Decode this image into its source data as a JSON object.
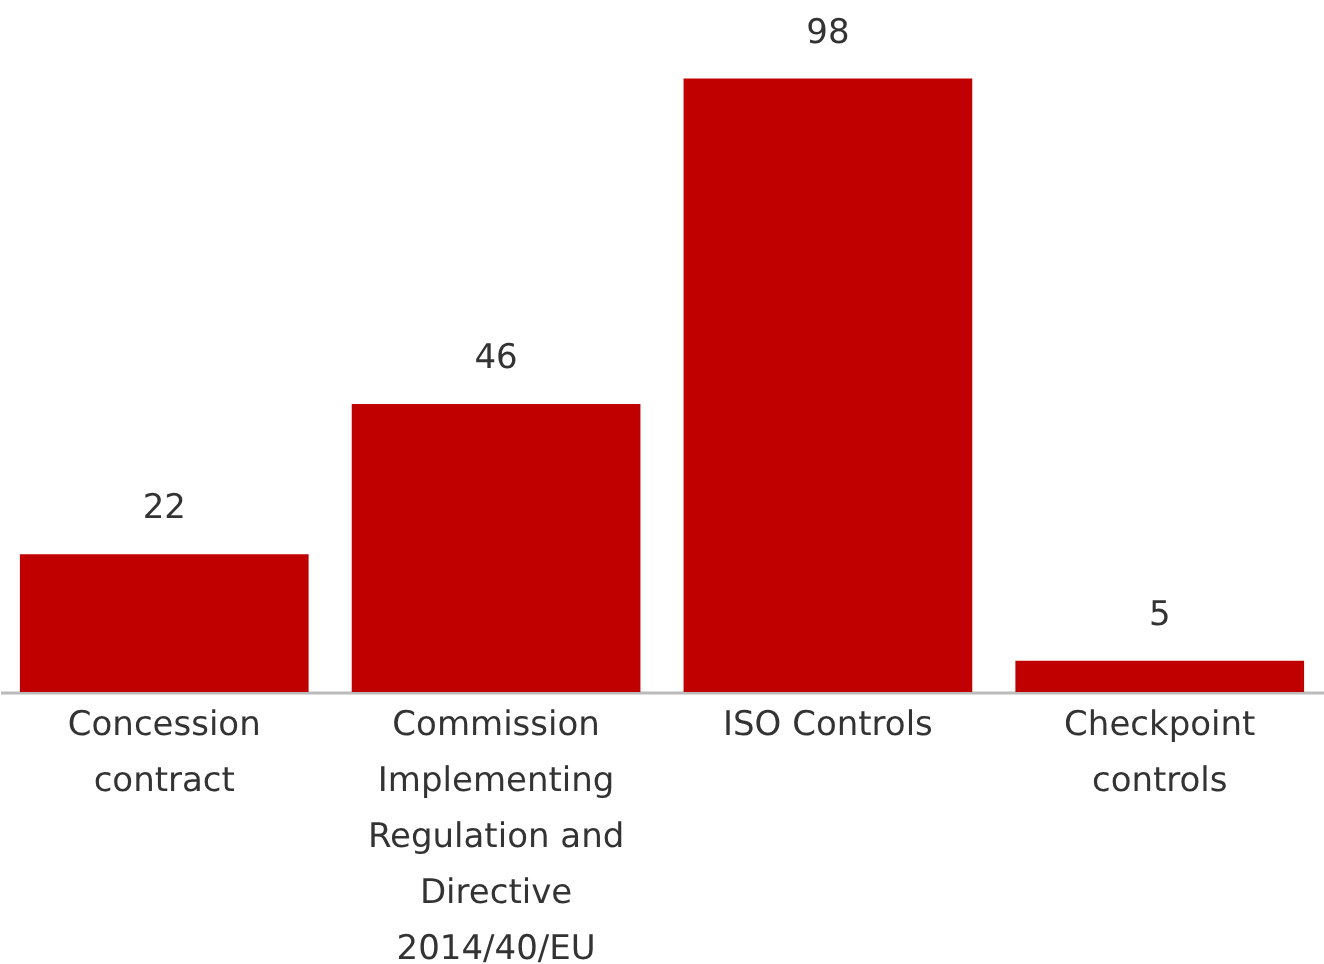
{
  "chart_data": {
    "type": "bar",
    "categories": [
      "Concession contract",
      "Commission Implementing Regulation and Directive 2014/40/EU",
      "ISO Controls",
      "Checkpoint controls"
    ],
    "values": [
      22,
      46,
      98,
      5
    ],
    "color": "#c00000",
    "data_labels": true
  }
}
